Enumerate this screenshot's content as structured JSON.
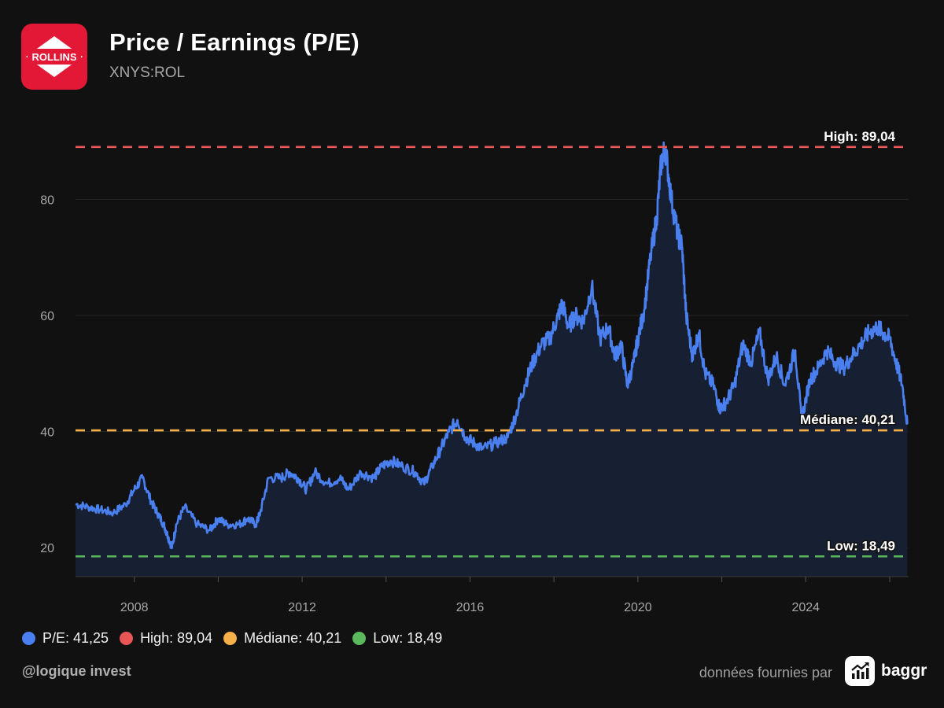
{
  "header": {
    "title": "Price / Earnings (P/E)",
    "subtitle": "XNYS:ROL",
    "logo_text": "ROLLINS",
    "logo_color": "#e31837"
  },
  "chart_data": {
    "type": "area",
    "x_range": [
      2006.6,
      2026.45
    ],
    "ylim": [
      15,
      92
    ],
    "yticks": [
      20,
      40,
      60,
      80
    ],
    "xticks": [
      2008,
      2012,
      2016,
      2020,
      2024
    ],
    "xticks_minor": [
      2006,
      2008,
      2010,
      2012,
      2014,
      2016,
      2018,
      2020,
      2022,
      2024,
      2026
    ],
    "grid": "horizontal",
    "series": [
      {
        "name": "P/E",
        "color": "#4a7ff0",
        "x": [
          2006.6,
          2006.9,
          2007.2,
          2007.5,
          2007.8,
          2008.0,
          2008.2,
          2008.4,
          2008.55,
          2008.7,
          2008.8,
          2008.9,
          2009.0,
          2009.2,
          2009.5,
          2009.8,
          2010.0,
          2010.2,
          2010.5,
          2010.7,
          2010.9,
          2011.0,
          2011.2,
          2011.5,
          2011.7,
          2011.9,
          2012.1,
          2012.3,
          2012.6,
          2012.9,
          2013.1,
          2013.4,
          2013.7,
          2013.9,
          2014.1,
          2014.4,
          2014.7,
          2014.9,
          2015.1,
          2015.3,
          2015.5,
          2015.7,
          2015.9,
          2016.1,
          2016.3,
          2016.6,
          2016.9,
          2017.1,
          2017.3,
          2017.5,
          2017.7,
          2017.9,
          2018.1,
          2018.2,
          2018.35,
          2018.5,
          2018.7,
          2018.9,
          2019.1,
          2019.3,
          2019.45,
          2019.6,
          2019.75,
          2019.9,
          2020.0,
          2020.15,
          2020.3,
          2020.45,
          2020.55,
          2020.65,
          2020.8,
          2020.95,
          2021.05,
          2021.15,
          2021.3,
          2021.45,
          2021.6,
          2021.8,
          2021.95,
          2022.1,
          2022.3,
          2022.5,
          2022.7,
          2022.9,
          2023.1,
          2023.3,
          2023.5,
          2023.75,
          2023.9,
          2024.1,
          2024.3,
          2024.5,
          2024.7,
          2024.9,
          2025.1,
          2025.3,
          2025.5,
          2025.7,
          2025.85,
          2026.0,
          2026.15,
          2026.3,
          2026.42
        ],
        "values": [
          27.5,
          27,
          26.5,
          26,
          27.5,
          30,
          32,
          28,
          26,
          24,
          22,
          20,
          24,
          27,
          24,
          23,
          25,
          24,
          24,
          25,
          24,
          26,
          32,
          32,
          33,
          32,
          30,
          33,
          31,
          32,
          30,
          33,
          32,
          34,
          35,
          34,
          33,
          31,
          34,
          37,
          40,
          42,
          39,
          38,
          37,
          38,
          39,
          43,
          48,
          52,
          55,
          56,
          60,
          62,
          58,
          60,
          59,
          65,
          56,
          58,
          53,
          55,
          48,
          52,
          56,
          61,
          70,
          77,
          86,
          89,
          80,
          74,
          72,
          60,
          53,
          57,
          50,
          48,
          44,
          45,
          48,
          55,
          52,
          57,
          49,
          53,
          48,
          54,
          42,
          49,
          51,
          54,
          52,
          51,
          53,
          55,
          57,
          58,
          57,
          56,
          52,
          48,
          41.25
        ]
      }
    ],
    "reference_lines": [
      {
        "label": "High: 89,04",
        "value": 89.04,
        "color": "#e85656"
      },
      {
        "label": "Médiane: 40,21",
        "value": 40.21,
        "color": "#f5b04a"
      },
      {
        "label": "Low: 18,49",
        "value": 18.49,
        "color": "#5cb85c"
      }
    ]
  },
  "legend": [
    {
      "label": "P/E: 41,25",
      "color": "#4a7ff0"
    },
    {
      "label": "High: 89,04",
      "color": "#e85656"
    },
    {
      "label": "Médiane: 40,21",
      "color": "#f5b04a"
    },
    {
      "label": "Low: 18,49",
      "color": "#5cb85c"
    }
  ],
  "footer": {
    "credit": "@logique invest",
    "source_text": "données fournies par",
    "brand_name": "baggr",
    "brand_icon": "chart-trend-icon"
  }
}
